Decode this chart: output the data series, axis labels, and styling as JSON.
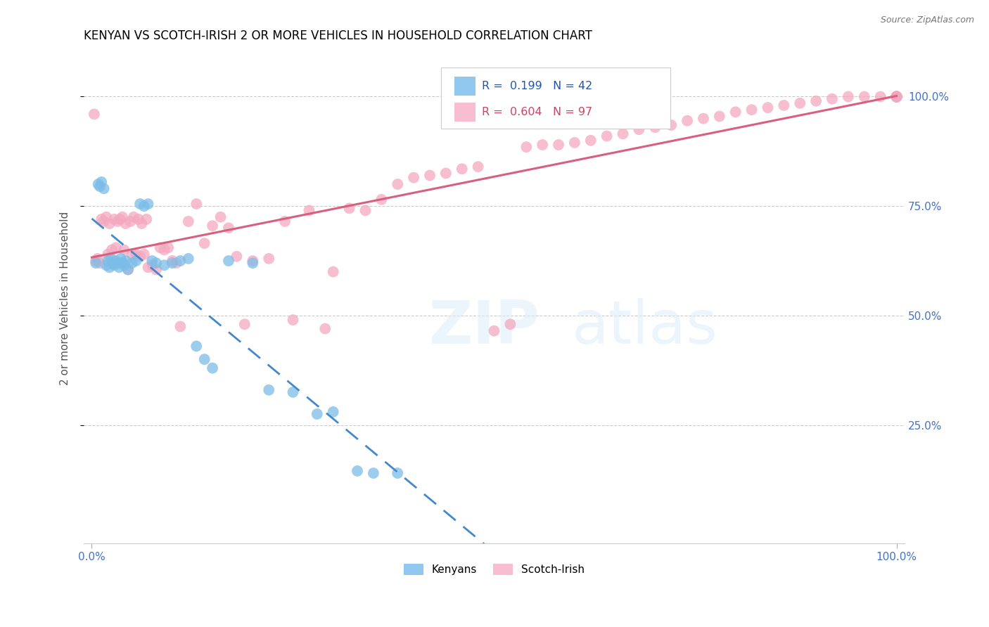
{
  "title": "KENYAN VS SCOTCH-IRISH 2 OR MORE VEHICLES IN HOUSEHOLD CORRELATION CHART",
  "source": "Source: ZipAtlas.com",
  "ylabel": "2 or more Vehicles in Household",
  "R_kenyan": 0.199,
  "N_kenyan": 42,
  "R_scotch": 0.604,
  "N_scotch": 97,
  "kenyan_color": "#7bbde8",
  "scotch_color": "#f4a8bf",
  "kenyan_line_color": "#4488cc",
  "scotch_line_color": "#d95f7f",
  "kenyan_legend_color": "#90c8f0",
  "scotch_legend_color": "#f7bdd0",
  "legend_label1": "Kenyans",
  "legend_label2": "Scotch-Irish",
  "kenyan_x": [
    0.5,
    0.8,
    1.0,
    1.2,
    1.5,
    1.8,
    2.0,
    2.2,
    2.4,
    2.6,
    2.8,
    3.0,
    3.2,
    3.4,
    3.6,
    3.8,
    4.0,
    4.2,
    4.5,
    5.0,
    5.5,
    6.0,
    6.5,
    7.0,
    7.5,
    8.0,
    9.0,
    10.0,
    11.0,
    12.0,
    13.0,
    14.0,
    15.0,
    17.0,
    20.0,
    22.0,
    25.0,
    28.0,
    30.0,
    33.0,
    35.0,
    38.0
  ],
  "kenyan_y": [
    62.0,
    80.0,
    79.5,
    80.5,
    79.0,
    61.5,
    62.5,
    61.0,
    63.0,
    62.0,
    61.5,
    62.5,
    62.0,
    61.0,
    63.0,
    62.0,
    61.5,
    62.5,
    60.5,
    62.0,
    62.5,
    75.5,
    75.0,
    75.5,
    62.5,
    62.0,
    61.5,
    62.0,
    62.5,
    63.0,
    43.0,
    40.0,
    38.0,
    62.5,
    62.0,
    33.0,
    32.5,
    27.5,
    28.0,
    14.5,
    14.0,
    14.0
  ],
  "scotch_x": [
    0.3,
    0.5,
    0.7,
    1.0,
    1.2,
    1.5,
    1.8,
    2.0,
    2.2,
    2.5,
    2.8,
    3.0,
    3.2,
    3.5,
    3.8,
    4.0,
    4.2,
    4.5,
    4.8,
    5.0,
    5.2,
    5.5,
    5.8,
    6.0,
    6.2,
    6.5,
    6.8,
    7.0,
    7.5,
    8.0,
    8.5,
    9.0,
    9.5,
    10.0,
    10.5,
    11.0,
    12.0,
    13.0,
    14.0,
    15.0,
    16.0,
    17.0,
    18.0,
    19.0,
    20.0,
    22.0,
    24.0,
    25.0,
    27.0,
    29.0,
    30.0,
    32.0,
    34.0,
    36.0,
    38.0,
    40.0,
    42.0,
    44.0,
    46.0,
    48.0,
    50.0,
    52.0,
    54.0,
    56.0,
    58.0,
    60.0,
    62.0,
    64.0,
    66.0,
    68.0,
    70.0,
    72.0,
    74.0,
    76.0,
    78.0,
    80.0,
    82.0,
    84.0,
    86.0,
    88.0,
    90.0,
    92.0,
    94.0,
    96.0,
    98.0,
    100.0,
    100.0,
    100.0,
    100.0,
    100.0,
    100.0,
    100.0,
    100.0,
    100.0,
    100.0,
    100.0,
    100.0
  ],
  "scotch_y": [
    96.0,
    62.5,
    63.0,
    62.0,
    72.0,
    71.5,
    72.5,
    64.0,
    71.0,
    65.0,
    72.0,
    65.5,
    71.5,
    72.0,
    72.5,
    65.0,
    71.0,
    60.5,
    71.5,
    64.0,
    72.5,
    64.0,
    72.0,
    63.5,
    71.0,
    64.0,
    72.0,
    61.0,
    61.5,
    60.5,
    65.5,
    65.0,
    65.5,
    62.5,
    62.0,
    47.5,
    71.5,
    75.5,
    66.5,
    70.5,
    72.5,
    70.0,
    63.5,
    48.0,
    62.5,
    63.0,
    71.5,
    49.0,
    74.0,
    47.0,
    60.0,
    74.5,
    74.0,
    76.5,
    80.0,
    81.5,
    82.0,
    82.5,
    83.5,
    84.0,
    46.5,
    48.0,
    88.5,
    89.0,
    89.0,
    89.5,
    90.0,
    91.0,
    91.5,
    92.5,
    93.0,
    93.5,
    94.5,
    95.0,
    95.5,
    96.5,
    97.0,
    97.5,
    98.0,
    98.5,
    99.0,
    99.5,
    100.0,
    100.0,
    100.0,
    100.0,
    100.0,
    100.0,
    100.0,
    100.0,
    100.0,
    100.0,
    100.0,
    100.0,
    100.0,
    100.0,
    100.0
  ]
}
